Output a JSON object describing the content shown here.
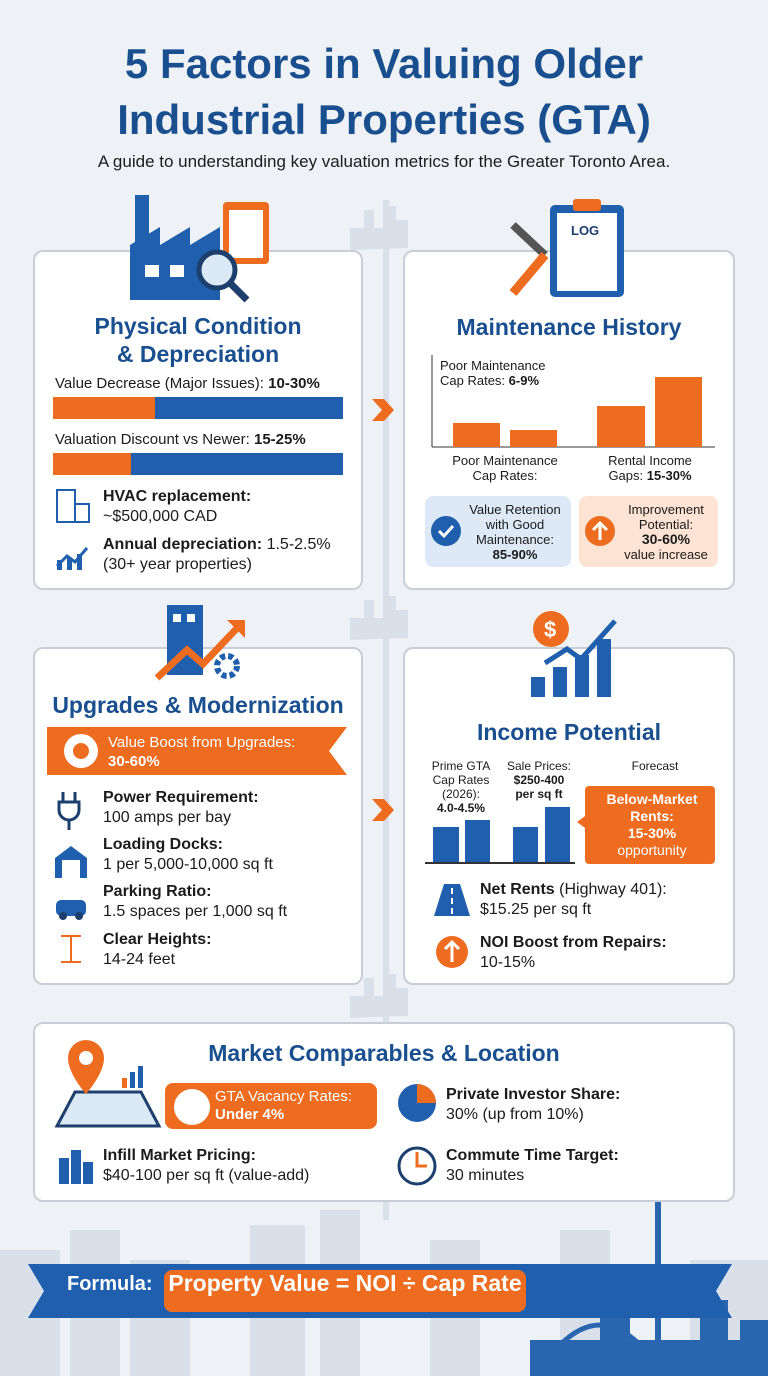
{
  "header": {
    "title_lines": [
      "5 Factors in Valuing Older",
      "Industrial Properties (GTA)"
    ],
    "subtitle": "A guide to understanding key valuation metrics for the Greater Toronto Area."
  },
  "physical": {
    "title_lines": [
      "Physical Condition",
      "& Depreciation"
    ],
    "metrics": [
      {
        "label": "Value Decrease (Major Issues):",
        "value": "10-30%"
      },
      {
        "label": "Valuation Discount vs Newer:",
        "value": "15-25%"
      }
    ],
    "items": [
      {
        "label": "HVAC replacement:",
        "text": "~$500,000 CAD"
      },
      {
        "label": "Annual depreciation:",
        "text": "1.5-2.5% (30+ year properties)"
      }
    ]
  },
  "maintenance": {
    "title": "Maintenance History",
    "chart_note": {
      "label": "Poor Maintenance Cap Rates:",
      "value": "6-9%"
    },
    "chart_labels": [
      {
        "label": "Poor Maintenance Cap Rates:",
        "value": ""
      },
      {
        "label": "Rental Income Gaps:",
        "value": "15-30%"
      }
    ],
    "badges": [
      {
        "label": "Value Retention with Good Maintenance:",
        "value": "85-90%"
      },
      {
        "label": "Improvement Potential:",
        "value": "30-60%",
        "note": "value increase"
      }
    ]
  },
  "upgrades": {
    "title": "Upgrades & Modernization",
    "banner": {
      "label": "Value Boost from Upgrades:",
      "value": "30-60%"
    },
    "items": [
      {
        "label": "Power Requirement:",
        "text": "100 amps per bay"
      },
      {
        "label": "Loading Docks:",
        "text": "1 per 5,000-10,000 sq ft"
      },
      {
        "label": "Parking Ratio:",
        "text": "1.5 spaces per 1,000 sq ft"
      },
      {
        "label": "Clear Heights:",
        "text": "14-24 feet"
      }
    ]
  },
  "income": {
    "title": "Income Potential",
    "chart_labels": [
      {
        "label": "Prime GTA Cap Rates (2026):",
        "value": "4.0-4.5%"
      },
      {
        "label": "Sale Prices:",
        "value": "$250-400 per sq ft"
      },
      {
        "label": "Forecast"
      }
    ],
    "callout": {
      "label": "Below-Market Rents:",
      "value": "15-30%",
      "note": "opportunity"
    },
    "items": [
      {
        "label": "Net Rents",
        "text": "(Highway 401): $15.25 per sq ft"
      },
      {
        "label": "NOI Boost from Repairs:",
        "text": "10-15%"
      }
    ]
  },
  "market": {
    "title": "Market Comparables & Location",
    "vacancy": {
      "label": "GTA Vacancy Rates:",
      "value": "Under 4%"
    },
    "items": [
      {
        "label": "Infill Market Pricing:",
        "text": "$40-100 per sq ft (value-add)"
      },
      {
        "label": "Private Investor Share:",
        "text": "30% (up from 10%)"
      },
      {
        "label": "Commute Time Target:",
        "text": "30 minutes"
      }
    ]
  },
  "footer": {
    "label": "Formula:",
    "formula": "Property Value = NOI ÷ Cap Rate"
  }
}
